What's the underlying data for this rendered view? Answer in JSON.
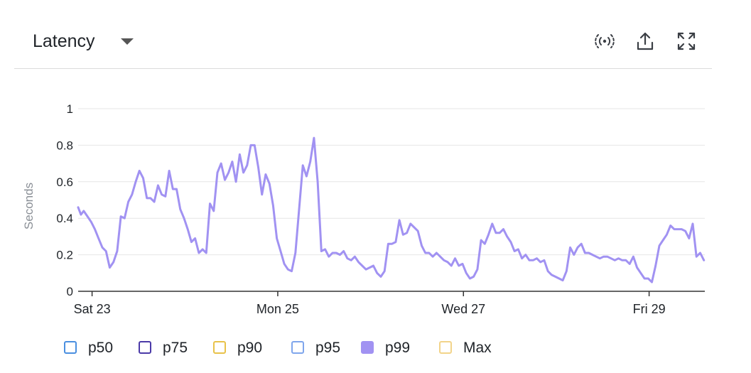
{
  "panel": {
    "title": "Latency"
  },
  "toolbar": {
    "icons": [
      "live-stream-icon",
      "share-upload-icon",
      "expand-fullscreen-icon"
    ]
  },
  "colors": {
    "line": "#a192f2",
    "grid": "#e6e6e6",
    "axis": "#333333"
  },
  "chart_data": {
    "type": "line",
    "title": "",
    "ylabel": "Seconds",
    "xlabel": "",
    "ylim": [
      0,
      1
    ],
    "y_ticks": [
      "0",
      "0.2",
      "0.4",
      "0.6",
      "0.8",
      "1"
    ],
    "x_tick_labels": [
      "Sat 23",
      "Mon 25",
      "Wed 27",
      "Fri 29"
    ],
    "x_range_days": [
      22.85,
      29.6
    ],
    "grid": true,
    "legend_placement": "bottom",
    "legend": [
      {
        "name": "p50",
        "color": "#4a8fe0",
        "filled": false
      },
      {
        "name": "p75",
        "color": "#4b3aa8",
        "filled": false
      },
      {
        "name": "p90",
        "color": "#e8c24a",
        "filled": false
      },
      {
        "name": "p95",
        "color": "#7fa6ec",
        "filled": false
      },
      {
        "name": "p99",
        "color": "#a192f2",
        "filled": true
      },
      {
        "name": "Max",
        "color": "#f2d48a",
        "filled": false
      }
    ],
    "series": [
      {
        "name": "p99",
        "x": [
          22.85,
          22.88,
          22.91,
          22.95,
          22.99,
          23.03,
          23.07,
          23.11,
          23.15,
          23.19,
          23.23,
          23.27,
          23.31,
          23.35,
          23.39,
          23.43,
          23.47,
          23.51,
          23.55,
          23.59,
          23.63,
          23.67,
          23.71,
          23.75,
          23.79,
          23.83,
          23.87,
          23.91,
          23.95,
          23.99,
          24.03,
          24.07,
          24.11,
          24.15,
          24.19,
          24.23,
          24.27,
          24.31,
          24.35,
          24.39,
          24.43,
          24.47,
          24.51,
          24.55,
          24.59,
          24.63,
          24.67,
          24.71,
          24.75,
          24.79,
          24.83,
          24.87,
          24.91,
          24.95,
          24.99,
          25.03,
          25.07,
          25.11,
          25.15,
          25.19,
          25.23,
          25.27,
          25.31,
          25.35,
          25.39,
          25.43,
          25.47,
          25.51,
          25.55,
          25.59,
          25.63,
          25.67,
          25.71,
          25.75,
          25.79,
          25.83,
          25.87,
          25.91,
          25.95,
          25.99,
          26.03,
          26.07,
          26.11,
          26.15,
          26.19,
          26.23,
          26.27,
          26.31,
          26.35,
          26.39,
          26.43,
          26.47,
          26.51,
          26.55,
          26.59,
          26.63,
          26.67,
          26.71,
          26.75,
          26.79,
          26.83,
          26.87,
          26.91,
          26.95,
          26.99,
          27.03,
          27.07,
          27.11,
          27.15,
          27.19,
          27.23,
          27.27,
          27.31,
          27.35,
          27.39,
          27.43,
          27.47,
          27.51,
          27.55,
          27.59,
          27.63,
          27.67,
          27.71,
          27.75,
          27.79,
          27.83,
          27.87,
          27.91,
          27.95,
          27.99,
          28.03,
          28.07,
          28.11,
          28.15,
          28.19,
          28.23,
          28.27,
          28.31,
          28.35,
          28.39,
          28.43,
          28.47,
          28.51,
          28.55,
          28.59,
          28.63,
          28.67,
          28.71,
          28.75,
          28.79,
          28.83,
          28.87,
          28.91,
          28.95,
          28.99,
          29.03,
          29.07,
          29.11,
          29.15,
          29.19,
          29.23,
          29.27,
          29.31,
          29.35,
          29.39,
          29.43,
          29.47,
          29.51,
          29.55,
          29.59
        ],
        "values": [
          0.46,
          0.42,
          0.44,
          0.41,
          0.38,
          0.34,
          0.29,
          0.24,
          0.22,
          0.13,
          0.16,
          0.22,
          0.41,
          0.4,
          0.49,
          0.53,
          0.6,
          0.66,
          0.62,
          0.51,
          0.51,
          0.49,
          0.58,
          0.53,
          0.52,
          0.66,
          0.56,
          0.56,
          0.45,
          0.4,
          0.34,
          0.27,
          0.29,
          0.21,
          0.23,
          0.21,
          0.48,
          0.44,
          0.65,
          0.7,
          0.61,
          0.65,
          0.71,
          0.6,
          0.75,
          0.65,
          0.69,
          0.8,
          0.8,
          0.68,
          0.53,
          0.64,
          0.59,
          0.47,
          0.29,
          0.22,
          0.15,
          0.12,
          0.11,
          0.21,
          0.45,
          0.69,
          0.63,
          0.71,
          0.84,
          0.6,
          0.22,
          0.23,
          0.19,
          0.21,
          0.21,
          0.2,
          0.22,
          0.18,
          0.17,
          0.19,
          0.16,
          0.14,
          0.12,
          0.13,
          0.14,
          0.1,
          0.08,
          0.11,
          0.26,
          0.26,
          0.27,
          0.39,
          0.31,
          0.32,
          0.37,
          0.35,
          0.33,
          0.25,
          0.21,
          0.21,
          0.19,
          0.21,
          0.19,
          0.17,
          0.16,
          0.14,
          0.18,
          0.14,
          0.15,
          0.1,
          0.07,
          0.08,
          0.12,
          0.28,
          0.26,
          0.31,
          0.37,
          0.32,
          0.32,
          0.34,
          0.3,
          0.27,
          0.22,
          0.23,
          0.18,
          0.2,
          0.17,
          0.17,
          0.18,
          0.16,
          0.17,
          0.11,
          0.09,
          0.08,
          0.07,
          0.06,
          0.11,
          0.24,
          0.2,
          0.24,
          0.26,
          0.21,
          0.21,
          0.2,
          0.19,
          0.18,
          0.19,
          0.19,
          0.18,
          0.17,
          0.18,
          0.17,
          0.17,
          0.15,
          0.19,
          0.13,
          0.1,
          0.07,
          0.07,
          0.05,
          0.14,
          0.25,
          0.28,
          0.31,
          0.36,
          0.34,
          0.34,
          0.34,
          0.33,
          0.29,
          0.37,
          0.19,
          0.21,
          0.17
        ]
      }
    ]
  }
}
